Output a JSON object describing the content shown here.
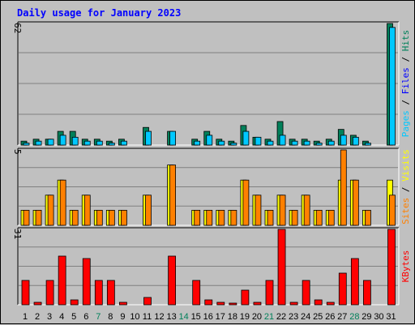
{
  "chart_data": {
    "type": "bar",
    "title": "Daily usage for January 2023",
    "categories": [
      "1",
      "2",
      "3",
      "4",
      "5",
      "6",
      "7",
      "8",
      "9",
      "10",
      "11",
      "12",
      "13",
      "14",
      "15",
      "16",
      "17",
      "18",
      "19",
      "20",
      "21",
      "22",
      "23",
      "24",
      "25",
      "26",
      "27",
      "28",
      "29",
      "30",
      "31"
    ],
    "weekend_days": [
      "7",
      "14",
      "21",
      "28"
    ],
    "weekday_label_color": "#000000",
    "weekend_label_color": "#00805a",
    "colors": {
      "hits": "#00805a",
      "files": "#00c8ff",
      "pages": "#00c8ff",
      "visits": "#ffff00",
      "sites": "#ff8000",
      "kbytes": "#ff0000",
      "background": "#c0c0c0",
      "grid": "#808080",
      "title": "#0000ff"
    },
    "panels": [
      {
        "id": "hits-files-pages",
        "ymax": 62,
        "ymax_label": "62",
        "legend": [
          {
            "text": "Pages",
            "color": "#00c8ff"
          },
          {
            "text": " / ",
            "color": "#000000"
          },
          {
            "text": "Files",
            "color": "#0000ff"
          },
          {
            "text": " / ",
            "color": "#000000"
          },
          {
            "text": "Hits",
            "color": "#00805a"
          }
        ],
        "series": [
          {
            "name": "Hits",
            "color": "#00805a",
            "values": [
              2,
              3,
              3,
              7,
              7,
              3,
              3,
              2,
              3,
              0,
              9,
              0,
              7,
              0,
              3,
              7,
              3,
              2,
              10,
              4,
              3,
              12,
              3,
              3,
              2,
              3,
              8,
              5,
              2,
              0,
              62
            ]
          },
          {
            "name": "Files",
            "color": "#00c8ff",
            "values": [
              1,
              2,
              3,
              5,
              4,
              2,
              2,
              1,
              2,
              0,
              7,
              0,
              7,
              0,
              2,
              5,
              2,
              1,
              7,
              4,
              2,
              5,
              2,
              2,
              1,
              2,
              5,
              4,
              1,
              0,
              60
            ]
          }
        ]
      },
      {
        "id": "visits-sites",
        "ymax": 5,
        "ymax_label": "5",
        "legend": [
          {
            "text": "Sites",
            "color": "#ff8000"
          },
          {
            "text": " / ",
            "color": "#000000"
          },
          {
            "text": "Visits",
            "color": "#ffff00"
          }
        ],
        "series": [
          {
            "name": "Visits",
            "color": "#ffff00",
            "values": [
              1,
              1,
              2,
              3,
              1,
              2,
              1,
              1,
              1,
              0,
              2,
              0,
              4,
              0,
              1,
              1,
              1,
              1,
              3,
              2,
              1,
              2,
              1,
              2,
              1,
              1,
              3,
              3,
              1,
              0,
              3
            ]
          },
          {
            "name": "Sites",
            "color": "#ff8000",
            "values": [
              1,
              1,
              2,
              3,
              1,
              2,
              1,
              1,
              1,
              0,
              2,
              0,
              4,
              0,
              1,
              1,
              1,
              1,
              3,
              2,
              1,
              2,
              1,
              2,
              1,
              1,
              5,
              3,
              1,
              0,
              2
            ]
          }
        ]
      },
      {
        "id": "kbytes",
        "ymax": 31,
        "ymax_label": "31",
        "legend": [
          {
            "text": "KBytes",
            "color": "#ff0000"
          }
        ],
        "series": [
          {
            "name": "KBytes",
            "color": "#ff0000",
            "values": [
              10,
              1,
              10,
              20,
              2,
              19,
              10,
              10,
              1,
              0,
              3,
              0,
              20,
              0,
              10,
              2,
              1,
              0.4,
              6,
              1,
              10,
              31,
              1,
              10,
              2,
              1,
              13,
              19,
              10,
              0,
              31
            ]
          }
        ]
      }
    ]
  }
}
